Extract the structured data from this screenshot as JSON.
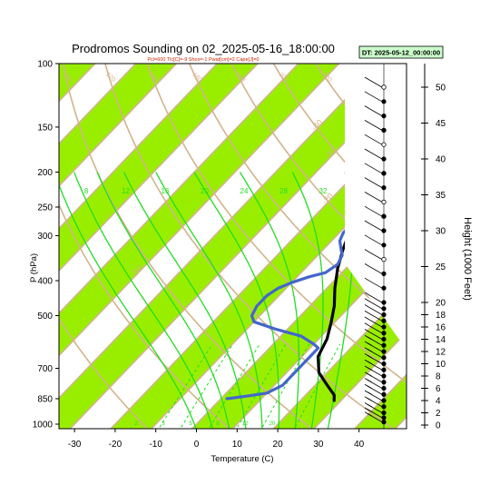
{
  "chart_data": {
    "type": "line",
    "title": "Prodromos Sounding on 02_2025-05-16_18:00:00",
    "subtitle": "Pcl=600 Tlc[C]=-9 Shox=-1 Pwat[cm]=2 Cape[J]=0",
    "dt_badge": "DT: 2025-05-12_00:00:00",
    "xlabel": "Temperature (C)",
    "ylabel": "P (hPa)",
    "ylabel_right": "Height (1000 Feet)",
    "xlim": [
      -33,
      43
    ],
    "ylim_hpa": [
      1050,
      100
    ],
    "x_ticks": [
      "-30",
      "-20",
      "-10",
      "0",
      "10",
      "20",
      "30",
      "40"
    ],
    "p_ticks": [
      "100",
      "150",
      "200",
      "250",
      "300",
      "400",
      "500",
      "700",
      "850",
      "1000"
    ],
    "height_ticks": [
      "0",
      "2",
      "4",
      "6",
      "8",
      "10",
      "12",
      "14",
      "16",
      "18",
      "20",
      "25",
      "30",
      "35",
      "40",
      "45",
      "50"
    ],
    "isotherm_labels": [
      "-50",
      "-40",
      "-30",
      "-20",
      "-10",
      "0",
      "10",
      "20",
      "30"
    ],
    "dry_adiabat_labels": [
      "60",
      "80",
      "100",
      "120",
      "140",
      "160",
      "180",
      "200",
      "220"
    ],
    "moist_adiabat_labels": [
      "8",
      "12",
      "16",
      "20",
      "24",
      "28",
      "32"
    ],
    "mixing_ratio_labels": [
      "2",
      "3",
      "5",
      "8",
      "12",
      "20"
    ],
    "series": [
      {
        "name": "",
        "color": "#000000",
        "points": [
          [
            28.3,
            860
          ],
          [
            27,
            830
          ],
          [
            23,
            780
          ],
          [
            18,
            720
          ],
          [
            14,
            650
          ],
          [
            12,
            580
          ],
          [
            9,
            520
          ],
          [
            6,
            470
          ],
          [
            2,
            420
          ],
          [
            -2,
            370
          ],
          [
            -5,
            330
          ],
          [
            -8,
            290
          ],
          [
            -11,
            250
          ],
          [
            -14,
            215
          ],
          [
            -15,
            190
          ],
          [
            -14,
            165
          ],
          [
            -11,
            145
          ],
          [
            -7,
            125
          ],
          [
            -2,
            110
          ],
          [
            3,
            102
          ]
        ]
      },
      {
        "name": "",
        "color": "#4466cc",
        "points": [
          [
            1.5,
            850
          ],
          [
            6,
            835
          ],
          [
            10,
            820
          ],
          [
            12,
            780
          ],
          [
            12,
            700
          ],
          [
            12,
            640
          ],
          [
            12,
            615
          ],
          [
            10,
            600
          ],
          [
            5,
            570
          ],
          [
            -3,
            545
          ],
          [
            -10,
            520
          ],
          [
            -12,
            500
          ],
          [
            -13,
            470
          ],
          [
            -13,
            440
          ],
          [
            -12,
            420
          ],
          [
            -10,
            405
          ],
          [
            -7,
            390
          ],
          [
            -4,
            380
          ],
          [
            -3,
            360
          ],
          [
            -4,
            340
          ],
          [
            -6,
            325
          ],
          [
            -8,
            310
          ],
          [
            -9,
            295
          ],
          [
            -9,
            280
          ],
          [
            -10,
            260
          ],
          [
            -11,
            250
          ],
          [
            -12,
            235
          ],
          [
            -13,
            220
          ],
          [
            -14,
            205
          ],
          [
            -15,
            190
          ],
          [
            -15,
            175
          ],
          [
            -15,
            160
          ],
          [
            -16,
            145
          ],
          [
            -17,
            130
          ],
          [
            -17,
            120
          ],
          [
            -16,
            112
          ],
          [
            -14,
            105
          ],
          [
            -12,
            100
          ]
        ]
      }
    ],
    "wind_heights_kft": [
      0.5,
      1.2,
      2,
      3,
      4,
      5,
      6,
      7,
      8,
      9,
      10,
      11,
      12,
      13,
      14,
      15,
      16,
      17,
      18,
      19,
      20,
      22,
      24,
      26,
      28,
      30,
      32,
      34,
      36,
      38,
      40,
      42,
      44,
      46,
      48,
      50
    ],
    "colors": {
      "band": "#99ee00",
      "isotherm": "#d2b48c",
      "moist_adiabat": "#22dd22",
      "mixing_ratio": "#22dd22",
      "temperature": "#000000",
      "dewpoint": "#4466cc"
    }
  }
}
